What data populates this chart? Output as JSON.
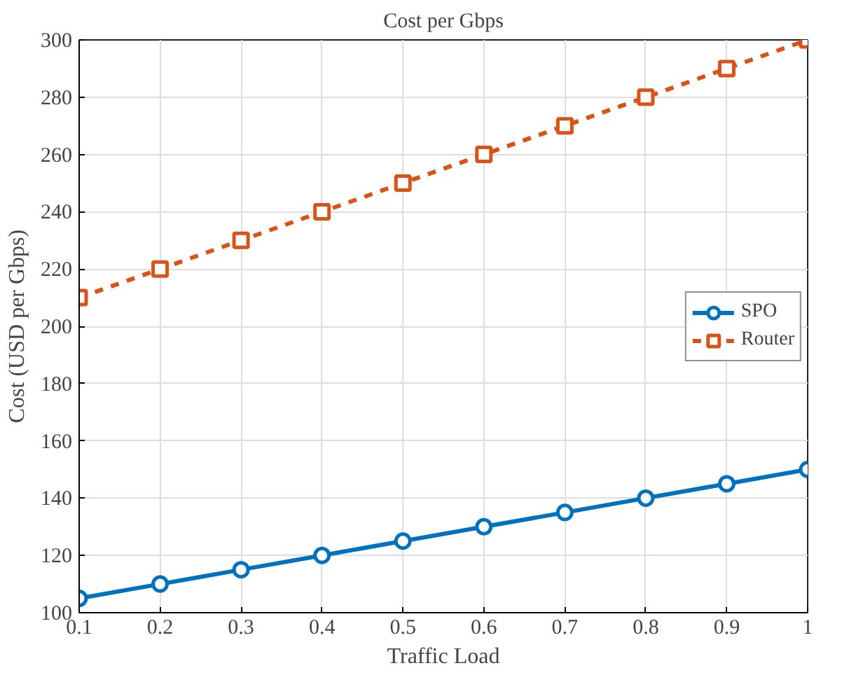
{
  "chart_data": {
    "type": "line",
    "title": "Cost per Gbps",
    "xlabel": "Traffic Load",
    "ylabel": "Cost (USD per Gbps)",
    "x": [
      0.1,
      0.2,
      0.3,
      0.4,
      0.5,
      0.6,
      0.7,
      0.8,
      0.9,
      1
    ],
    "series": [
      {
        "name": "SPO",
        "color": "#0072bd",
        "values": [
          105,
          110,
          115,
          120,
          125,
          130,
          135,
          140,
          145,
          150
        ],
        "marker": "circle",
        "line_style": "solid"
      },
      {
        "name": "Router",
        "color": "#d95319",
        "values": [
          210,
          220,
          230,
          240,
          250,
          260,
          270,
          280,
          290,
          300
        ],
        "marker": "square",
        "line_style": "dashed"
      }
    ],
    "xlim": [
      0.1,
      1
    ],
    "ylim": [
      100,
      300
    ],
    "xticks": [
      0.1,
      0.2,
      0.3,
      0.4,
      0.5,
      0.6,
      0.7,
      0.8,
      0.9,
      1
    ],
    "yticks": [
      100,
      120,
      140,
      160,
      180,
      200,
      220,
      240,
      260,
      280,
      300
    ],
    "grid": true,
    "legend": "right"
  }
}
